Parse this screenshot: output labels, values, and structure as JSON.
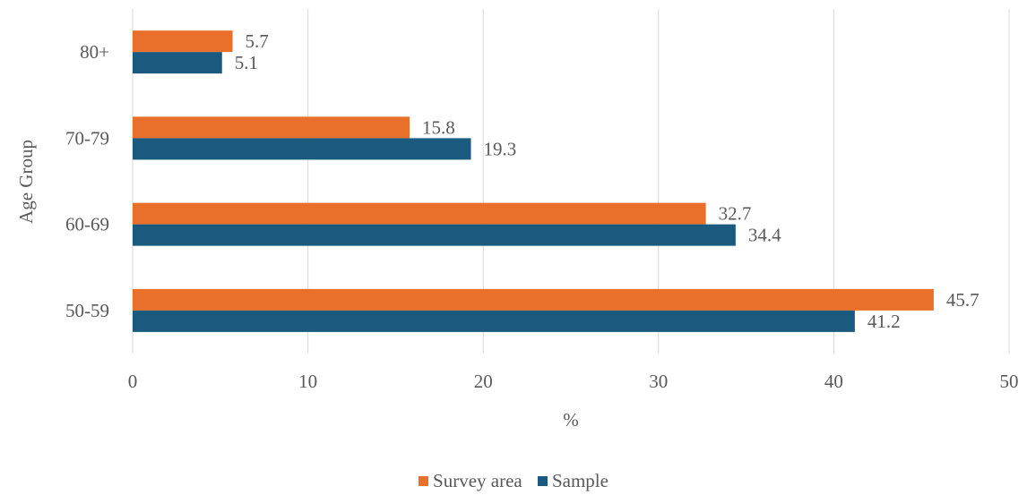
{
  "chart_data": {
    "type": "bar",
    "orientation": "horizontal",
    "categories": [
      "80+",
      "70-79",
      "60-69",
      "50-59"
    ],
    "series": [
      {
        "name": "Survey area",
        "color": "#e8702a",
        "values": [
          5.7,
          15.8,
          32.7,
          45.7
        ]
      },
      {
        "name": "Sample",
        "color": "#1a5a7e",
        "values": [
          5.1,
          19.3,
          34.4,
          41.2
        ]
      }
    ],
    "data_labels": {
      "Survey area": [
        "5.7",
        "15.8",
        "32.7",
        "45.7"
      ],
      "Sample": [
        "5.1",
        "19.3",
        "34.4",
        "41.2"
      ]
    },
    "xlim": [
      0,
      50
    ],
    "xticks": [
      "0",
      "10",
      "20",
      "30",
      "40",
      "50"
    ],
    "xlabel": "%",
    "ylabel": "Age Group",
    "grid": "vertical",
    "legend_position": "bottom"
  }
}
